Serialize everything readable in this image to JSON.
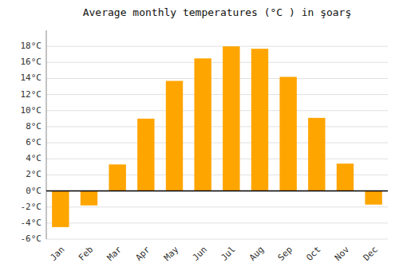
{
  "chart_data": {
    "type": "bar",
    "title": "Average monthly temperatures (°C ) in şoarş",
    "categories": [
      "Jan",
      "Feb",
      "Mar",
      "Apr",
      "May",
      "Jun",
      "Jul",
      "Aug",
      "Sep",
      "Oct",
      "Nov",
      "Dec"
    ],
    "values": [
      -4.5,
      -1.8,
      3.3,
      9.0,
      13.7,
      16.5,
      18.0,
      17.7,
      14.2,
      9.1,
      3.4,
      -1.7
    ],
    "color": "#FFA500",
    "ylim": [
      -6,
      20
    ],
    "yticks": [
      {
        "value": -6,
        "label": "-6°C"
      },
      {
        "value": -4,
        "label": "-4°C"
      },
      {
        "value": -2,
        "label": "-2°C"
      },
      {
        "value": 0,
        "label": "0°C"
      },
      {
        "value": 2,
        "label": "2°C"
      },
      {
        "value": 4,
        "label": "4°C"
      },
      {
        "value": 6,
        "label": "6°C"
      },
      {
        "value": 8,
        "label": "8°C"
      },
      {
        "value": 10,
        "label": "10°C"
      },
      {
        "value": 12,
        "label": "12°C"
      },
      {
        "value": 14,
        "label": "14°C"
      },
      {
        "value": 16,
        "label": "16°C"
      },
      {
        "value": 18,
        "label": "18°C"
      }
    ],
    "grid": true
  }
}
